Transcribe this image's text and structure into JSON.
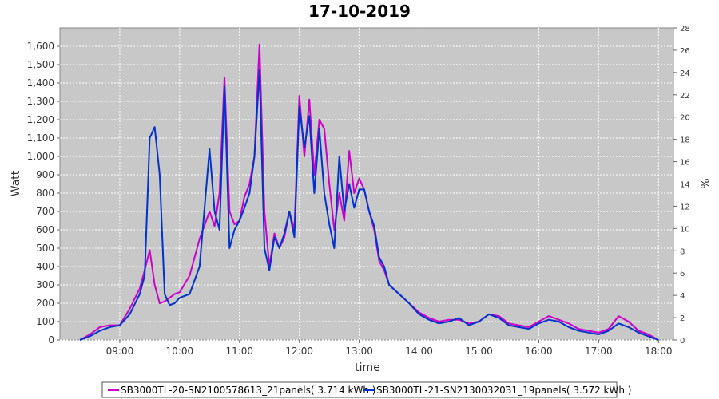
{
  "chart_data": {
    "type": "line",
    "title": "17-10-2019",
    "xlabel": "time",
    "ylabel": "Watt",
    "y2label": "%",
    "ylim": [
      0,
      1700
    ],
    "y2lim": [
      0,
      28
    ],
    "xlim": [
      "08:00",
      "18:15"
    ],
    "grid": true,
    "legend_position": "bottom",
    "x_ticks": [
      "09:00",
      "10:00",
      "11:00",
      "12:00",
      "13:00",
      "14:00",
      "15:00",
      "16:00",
      "17:00",
      "18:00"
    ],
    "y_ticks": [
      "0",
      "100",
      "200",
      "300",
      "400",
      "500",
      "600",
      "700",
      "800",
      "900",
      "1,000",
      "1,100",
      "1,200",
      "1,300",
      "1,400",
      "1,500",
      "1,600"
    ],
    "y2_ticks": [
      "0",
      "2",
      "4",
      "6",
      "8",
      "10",
      "12",
      "14",
      "16",
      "18",
      "20",
      "22",
      "24",
      "26",
      "28"
    ],
    "x": [
      "08:20",
      "08:30",
      "08:40",
      "08:50",
      "09:00",
      "09:10",
      "09:20",
      "09:25",
      "09:30",
      "09:35",
      "09:40",
      "09:45",
      "09:50",
      "09:55",
      "10:00",
      "10:10",
      "10:20",
      "10:30",
      "10:35",
      "10:40",
      "10:45",
      "10:50",
      "10:55",
      "11:00",
      "11:05",
      "11:10",
      "11:15",
      "11:20",
      "11:25",
      "11:30",
      "11:35",
      "11:40",
      "11:45",
      "11:50",
      "11:55",
      "12:00",
      "12:05",
      "12:10",
      "12:15",
      "12:20",
      "12:25",
      "12:30",
      "12:35",
      "12:40",
      "12:45",
      "12:50",
      "12:55",
      "13:00",
      "13:05",
      "13:10",
      "13:15",
      "13:20",
      "13:25",
      "13:30",
      "13:40",
      "13:50",
      "14:00",
      "14:10",
      "14:20",
      "14:30",
      "14:40",
      "14:50",
      "15:00",
      "15:10",
      "15:20",
      "15:30",
      "15:40",
      "15:50",
      "16:00",
      "16:10",
      "16:20",
      "16:30",
      "16:40",
      "16:50",
      "17:00",
      "17:10",
      "17:20",
      "17:30",
      "17:40",
      "17:50",
      "18:00"
    ],
    "series": [
      {
        "name": "SB3000TL-20-SN2100578613_21panels( 3.714 kWh )",
        "color": "#cc00cc",
        "values": [
          0,
          30,
          70,
          80,
          80,
          170,
          280,
          380,
          490,
          300,
          200,
          210,
          230,
          250,
          260,
          350,
          550,
          700,
          620,
          800,
          1430,
          700,
          630,
          650,
          780,
          850,
          1000,
          1610,
          700,
          400,
          580,
          500,
          560,
          700,
          600,
          1330,
          1000,
          1310,
          900,
          1200,
          1150,
          850,
          600,
          800,
          650,
          1030,
          800,
          880,
          820,
          700,
          600,
          430,
          380,
          300,
          250,
          200,
          150,
          120,
          100,
          110,
          110,
          90,
          100,
          140,
          130,
          90,
          80,
          70,
          100,
          130,
          110,
          90,
          60,
          50,
          40,
          60,
          130,
          100,
          50,
          30,
          0
        ]
      },
      {
        "name": "SB3000TL-21-SN2130032031_19panels( 3.572 kWh )",
        "color": "#0033cc",
        "values": [
          0,
          20,
          50,
          70,
          80,
          140,
          250,
          350,
          1100,
          1160,
          900,
          250,
          190,
          200,
          230,
          250,
          400,
          1040,
          700,
          600,
          1380,
          500,
          600,
          650,
          720,
          800,
          1000,
          1470,
          500,
          380,
          560,
          500,
          580,
          700,
          560,
          1270,
          1050,
          1220,
          800,
          1150,
          800,
          630,
          500,
          1000,
          700,
          850,
          720,
          820,
          820,
          700,
          620,
          450,
          400,
          300,
          250,
          200,
          140,
          110,
          90,
          100,
          120,
          80,
          100,
          140,
          120,
          80,
          70,
          60,
          90,
          110,
          100,
          70,
          50,
          40,
          30,
          50,
          90,
          70,
          40,
          20,
          0
        ]
      }
    ]
  }
}
